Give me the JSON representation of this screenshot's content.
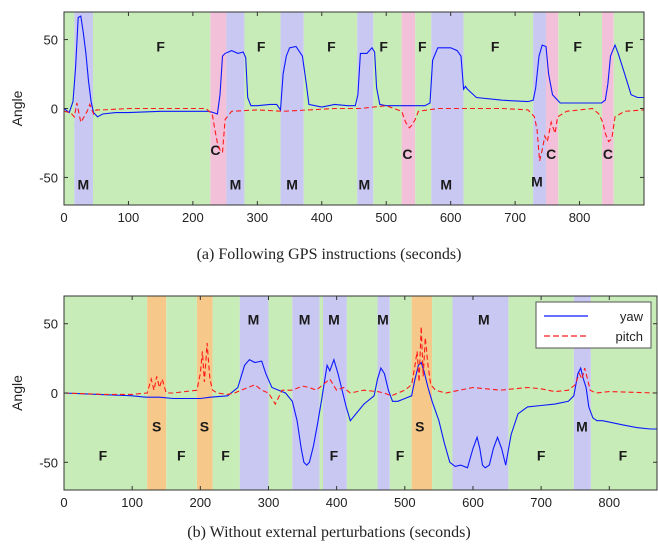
{
  "captions": {
    "a": "(a) Following GPS instructions (seconds)",
    "b": "(b) Without external perturbations (seconds)"
  },
  "colors": {
    "F": "#c8ecb8",
    "M": "#c9c8f2",
    "C": "#f2c0d8",
    "S": "#f6c88a",
    "yaw": "#0b19ff",
    "pitch": "#ff1a1a"
  },
  "chart_data": [
    {
      "type": "line",
      "title": "(a) Following GPS instructions (seconds)",
      "ylabel": "Angle",
      "xlim": [
        0,
        900
      ],
      "ylim": [
        -70,
        70
      ],
      "xticks": [
        0,
        100,
        200,
        300,
        400,
        500,
        600,
        700,
        800
      ],
      "yticks": [
        50,
        0,
        -50
      ],
      "regions": [
        {
          "label": "F",
          "x0": 0,
          "x1": 16
        },
        {
          "label": "M",
          "x0": 16,
          "x1": 45
        },
        {
          "label": "F",
          "x0": 45,
          "x1": 227
        },
        {
          "label": "C",
          "x0": 227,
          "x1": 252
        },
        {
          "label": "M",
          "x0": 252,
          "x1": 280
        },
        {
          "label": "F",
          "x0": 280,
          "x1": 336
        },
        {
          "label": "M",
          "x0": 336,
          "x1": 372
        },
        {
          "label": "F",
          "x0": 372,
          "x1": 455
        },
        {
          "label": "M",
          "x0": 455,
          "x1": 480
        },
        {
          "label": "F",
          "x0": 480,
          "x1": 524
        },
        {
          "label": "C",
          "x0": 524,
          "x1": 545
        },
        {
          "label": "F",
          "x0": 545,
          "x1": 570
        },
        {
          "label": "M",
          "x0": 570,
          "x1": 620
        },
        {
          "label": "F",
          "x0": 620,
          "x1": 728
        },
        {
          "label": "M",
          "x0": 728,
          "x1": 748
        },
        {
          "label": "C",
          "x0": 748,
          "x1": 767
        },
        {
          "label": "F",
          "x0": 767,
          "x1": 835
        },
        {
          "label": "C",
          "x0": 835,
          "x1": 853
        },
        {
          "label": "F",
          "x0": 853,
          "x1": 900
        }
      ],
      "labels": [
        {
          "text": "F",
          "x": 150,
          "y": 45
        },
        {
          "text": "M",
          "x": 30,
          "y": -55
        },
        {
          "text": "C",
          "x": 235,
          "y": -30
        },
        {
          "text": "M",
          "x": 266,
          "y": -55
        },
        {
          "text": "F",
          "x": 306,
          "y": 45
        },
        {
          "text": "M",
          "x": 354,
          "y": -55
        },
        {
          "text": "F",
          "x": 415,
          "y": 45
        },
        {
          "text": "M",
          "x": 466,
          "y": -55
        },
        {
          "text": "F",
          "x": 496,
          "y": 45
        },
        {
          "text": "C",
          "x": 533,
          "y": -33
        },
        {
          "text": "F",
          "x": 556,
          "y": 45
        },
        {
          "text": "M",
          "x": 593,
          "y": -55
        },
        {
          "text": "F",
          "x": 669,
          "y": 45
        },
        {
          "text": "M",
          "x": 734,
          "y": -53
        },
        {
          "text": "C",
          "x": 756,
          "y": -33
        },
        {
          "text": "F",
          "x": 797,
          "y": 45
        },
        {
          "text": "C",
          "x": 844,
          "y": -33
        },
        {
          "text": "F",
          "x": 877,
          "y": 45
        }
      ],
      "series": [
        {
          "name": "yaw",
          "style": "solid",
          "x": [
            0,
            8,
            14,
            18,
            22,
            26,
            30,
            34,
            38,
            42,
            46,
            52,
            60,
            80,
            100,
            150,
            200,
            225,
            232,
            238,
            242,
            246,
            250,
            260,
            270,
            278,
            282,
            285,
            290,
            300,
            320,
            330,
            336,
            340,
            345,
            350,
            360,
            370,
            376,
            380,
            400,
            420,
            440,
            452,
            456,
            460,
            470,
            478,
            482,
            485,
            490,
            500,
            520,
            540,
            560,
            568,
            572,
            580,
            590,
            600,
            610,
            616,
            620,
            623,
            626,
            640,
            680,
            720,
            728,
            732,
            737,
            742,
            748,
            752,
            758,
            770,
            800,
            834,
            840,
            844,
            848,
            855,
            860,
            870,
            880,
            890,
            900
          ],
          "y": [
            0,
            -3,
            5,
            30,
            66,
            67,
            55,
            40,
            20,
            5,
            -3,
            -6,
            -4,
            -3,
            -3,
            -2,
            -2,
            -2,
            -3,
            -4,
            10,
            38,
            40,
            42,
            40,
            41,
            37,
            8,
            2,
            2,
            3,
            3,
            -1,
            25,
            38,
            44,
            45,
            38,
            18,
            3,
            1,
            3,
            2,
            2,
            10,
            40,
            40,
            44,
            41,
            15,
            3,
            2,
            2,
            2,
            2,
            4,
            35,
            44,
            44,
            44,
            42,
            38,
            14,
            16,
            14,
            8,
            6,
            5,
            6,
            15,
            38,
            46,
            45,
            25,
            10,
            4,
            4,
            4,
            6,
            18,
            38,
            46,
            40,
            25,
            10,
            8,
            8
          ]
        },
        {
          "name": "pitch",
          "style": "dashed",
          "x": [
            0,
            10,
            16,
            20,
            26,
            30,
            36,
            40,
            46,
            50,
            60,
            100,
            150,
            200,
            220,
            230,
            234,
            238,
            242,
            246,
            250,
            260,
            300,
            340,
            380,
            420,
            460,
            500,
            524,
            530,
            536,
            540,
            545,
            550,
            580,
            620,
            680,
            720,
            730,
            734,
            738,
            742,
            746,
            750,
            756,
            762,
            766,
            780,
            820,
            830,
            836,
            840,
            845,
            850,
            855,
            870,
            900
          ],
          "y": [
            -2,
            -3,
            -6,
            4,
            -10,
            -7,
            -2,
            3,
            -4,
            -1,
            -1,
            0,
            0,
            0,
            0,
            -4,
            -15,
            -25,
            -30,
            -32,
            -8,
            -2,
            -1,
            -2,
            -1,
            0,
            0,
            2,
            -2,
            -10,
            -14,
            -12,
            -8,
            -2,
            0,
            0,
            0,
            -1,
            -6,
            -15,
            -38,
            -30,
            -20,
            -24,
            -10,
            -18,
            -6,
            -2,
            0,
            -4,
            -10,
            -18,
            -24,
            -22,
            -6,
            -2,
            -1
          ]
        }
      ]
    },
    {
      "type": "line",
      "title": "(b) Without external perturbations (seconds)",
      "ylabel": "Angle",
      "xlim": [
        0,
        870
      ],
      "ylim": [
        -70,
        70
      ],
      "xticks": [
        0,
        100,
        200,
        300,
        400,
        500,
        600,
        700,
        800
      ],
      "yticks": [
        50,
        0,
        -50
      ],
      "legend": {
        "position": "top-right",
        "entries": [
          "yaw",
          "pitch"
        ]
      },
      "regions": [
        {
          "label": "F",
          "x0": 0,
          "x1": 122
        },
        {
          "label": "S",
          "x0": 122,
          "x1": 150
        },
        {
          "label": "F",
          "x0": 150,
          "x1": 195
        },
        {
          "label": "S",
          "x0": 195,
          "x1": 218
        },
        {
          "label": "F",
          "x0": 218,
          "x1": 258
        },
        {
          "label": "M",
          "x0": 258,
          "x1": 300
        },
        {
          "label": "F",
          "x0": 300,
          "x1": 335
        },
        {
          "label": "M",
          "x0": 335,
          "x1": 375
        },
        {
          "label": "F",
          "x0": 375,
          "x1": 380
        },
        {
          "label": "M",
          "x0": 380,
          "x1": 415
        },
        {
          "label": "F",
          "x0": 415,
          "x1": 460
        },
        {
          "label": "M",
          "x0": 460,
          "x1": 478
        },
        {
          "label": "F",
          "x0": 478,
          "x1": 510
        },
        {
          "label": "S",
          "x0": 510,
          "x1": 540
        },
        {
          "label": "F",
          "x0": 540,
          "x1": 570
        },
        {
          "label": "M",
          "x0": 570,
          "x1": 652
        },
        {
          "label": "F",
          "x0": 652,
          "x1": 748
        },
        {
          "label": "M",
          "x0": 748,
          "x1": 773
        },
        {
          "label": "F",
          "x0": 773,
          "x1": 870
        }
      ],
      "labels": [
        {
          "text": "F",
          "x": 57,
          "y": -45
        },
        {
          "text": "S",
          "x": 136,
          "y": -24
        },
        {
          "text": "F",
          "x": 172,
          "y": -45
        },
        {
          "text": "S",
          "x": 206,
          "y": -24
        },
        {
          "text": "F",
          "x": 237,
          "y": -45
        },
        {
          "text": "M",
          "x": 278,
          "y": 53
        },
        {
          "text": "M",
          "x": 353,
          "y": 53
        },
        {
          "text": "M",
          "x": 396,
          "y": 53
        },
        {
          "text": "F",
          "x": 396,
          "y": -45
        },
        {
          "text": "M",
          "x": 468,
          "y": 53
        },
        {
          "text": "F",
          "x": 493,
          "y": -45
        },
        {
          "text": "S",
          "x": 522,
          "y": -24
        },
        {
          "text": "M",
          "x": 616,
          "y": 53
        },
        {
          "text": "F",
          "x": 700,
          "y": -45
        },
        {
          "text": "M",
          "x": 760,
          "y": -24
        },
        {
          "text": "F",
          "x": 820,
          "y": -45
        }
      ],
      "series": [
        {
          "name": "yaw",
          "style": "solid",
          "x": [
            0,
            50,
            100,
            120,
            140,
            160,
            200,
            215,
            240,
            255,
            265,
            272,
            280,
            290,
            296,
            305,
            315,
            325,
            335,
            342,
            348,
            352,
            356,
            360,
            366,
            372,
            378,
            382,
            386,
            390,
            396,
            402,
            408,
            414,
            420,
            440,
            455,
            460,
            465,
            470,
            476,
            482,
            490,
            500,
            510,
            515,
            520,
            524,
            528,
            534,
            540,
            550,
            558,
            566,
            574,
            582,
            592,
            600,
            606,
            610,
            614,
            618,
            624,
            630,
            636,
            642,
            648,
            656,
            666,
            680,
            700,
            720,
            740,
            748,
            754,
            758,
            762,
            766,
            770,
            776,
            782,
            790,
            800,
            820,
            840,
            860,
            870
          ],
          "y": [
            0,
            -1,
            -2,
            -3,
            -3,
            -4,
            -4,
            -3,
            -2,
            4,
            20,
            24,
            22,
            23,
            14,
            4,
            2,
            0,
            -6,
            -20,
            -40,
            -50,
            -52,
            -50,
            -38,
            -22,
            -5,
            8,
            20,
            16,
            24,
            14,
            2,
            -10,
            -20,
            -8,
            -2,
            10,
            18,
            14,
            2,
            -6,
            -6,
            -4,
            -2,
            10,
            20,
            22,
            16,
            4,
            -6,
            -20,
            -36,
            -50,
            -53,
            -52,
            -54,
            -40,
            -32,
            -40,
            -52,
            -54,
            -52,
            -40,
            -32,
            -40,
            -52,
            -30,
            -15,
            -10,
            -9,
            -8,
            -6,
            -2,
            14,
            18,
            10,
            4,
            -10,
            -18,
            -20,
            -20,
            -21,
            -23,
            -25,
            -26,
            -26
          ]
        },
        {
          "name": "pitch",
          "style": "dashed",
          "x": [
            0,
            60,
            100,
            122,
            128,
            132,
            136,
            140,
            144,
            150,
            160,
            195,
            200,
            203,
            206,
            210,
            214,
            218,
            225,
            240,
            250,
            260,
            270,
            280,
            290,
            300,
            310,
            320,
            335,
            350,
            360,
            370,
            380,
            390,
            400,
            410,
            420,
            440,
            460,
            470,
            480,
            500,
            510,
            515,
            518,
            521,
            524,
            527,
            530,
            534,
            538,
            545,
            560,
            600,
            640,
            680,
            700,
            720,
            740,
            750,
            756,
            760,
            764,
            768,
            772,
            780,
            800,
            870
          ],
          "y": [
            0,
            -1,
            -1,
            0,
            10,
            2,
            12,
            4,
            10,
            0,
            0,
            2,
            14,
            30,
            8,
            36,
            10,
            2,
            0,
            -1,
            0,
            2,
            4,
            6,
            2,
            0,
            -8,
            2,
            2,
            5,
            4,
            2,
            6,
            10,
            2,
            4,
            0,
            2,
            1,
            0,
            -2,
            2,
            6,
            20,
            30,
            8,
            48,
            12,
            40,
            20,
            6,
            2,
            0,
            4,
            2,
            4,
            3,
            1,
            2,
            6,
            14,
            10,
            18,
            10,
            2,
            0,
            1,
            0
          ]
        }
      ]
    }
  ]
}
